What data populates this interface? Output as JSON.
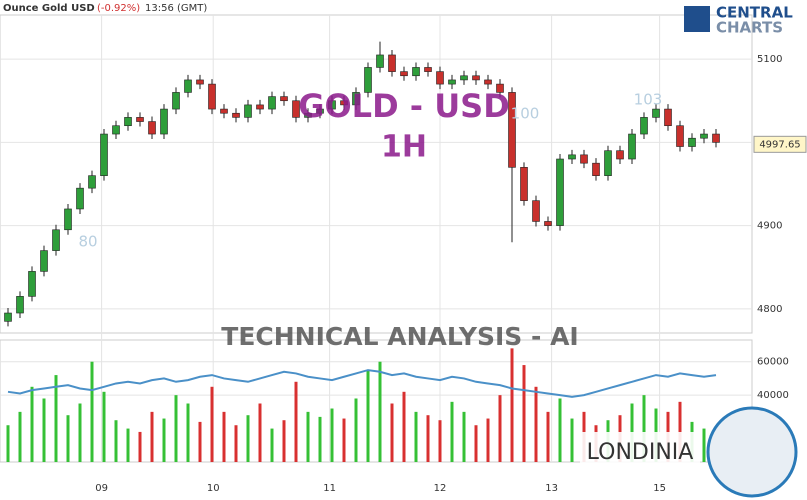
{
  "header": {
    "symbol": "Ounce Gold USD",
    "change": "(-0.92%)",
    "time": "13:56 (GMT)",
    "brand": "CENTRAL",
    "brand2": "CHARTS"
  },
  "watermarks": {
    "title": "GOLD - USD",
    "timeframe": "1H",
    "analysis": "TECHNICAL  ANALYSIS - AI",
    "provider": "LONDINIA",
    "faint": [
      "80",
      "100",
      "103"
    ]
  },
  "chart_data": [
    {
      "type": "candlestick",
      "last_price": 4997.65,
      "up_color": "#2e9e3a",
      "down_color": "#c8302c",
      "open": [
        4785,
        4795,
        4815,
        4845,
        4870,
        4895,
        4920,
        4945,
        4960,
        5010,
        5020,
        5030,
        5025,
        5010,
        5040,
        5060,
        5075,
        5070,
        5040,
        5035,
        5030,
        5045,
        5040,
        5055,
        5050,
        5030,
        5035,
        5040,
        5050,
        5045,
        5060,
        5090,
        5105,
        5085,
        5080,
        5090,
        5085,
        5070,
        5075,
        5080,
        5075,
        5070,
        5060,
        4970,
        4930,
        4905,
        4900,
        4980,
        4985,
        4975,
        4960,
        4990,
        4980,
        5010,
        5030,
        5040,
        5020,
        4995,
        5005,
        5010
      ],
      "high": [
        4801,
        4821,
        4851,
        4876,
        4901,
        4926,
        4951,
        4966,
        5016,
        5026,
        5036,
        5036,
        5031,
        5046,
        5066,
        5081,
        5081,
        5076,
        5046,
        5041,
        5051,
        5051,
        5061,
        5061,
        5056,
        5041,
        5046,
        5056,
        5056,
        5066,
        5096,
        5121,
        5111,
        5091,
        5096,
        5096,
        5091,
        5081,
        5086,
        5086,
        5081,
        5076,
        5066,
        4976,
        4936,
        4911,
        4986,
        4991,
        4991,
        4981,
        4996,
        4996,
        5016,
        5036,
        5046,
        5046,
        5026,
        5011,
        5016,
        5016
      ],
      "low": [
        4779,
        4789,
        4809,
        4839,
        4864,
        4889,
        4914,
        4939,
        4954,
        5004,
        5014,
        5019,
        5004,
        5004,
        5034,
        5054,
        5064,
        5034,
        5029,
        5024,
        5024,
        5034,
        5034,
        5044,
        5024,
        5024,
        5029,
        5034,
        5039,
        5039,
        5054,
        5084,
        5079,
        5074,
        5074,
        5079,
        5064,
        5064,
        5069,
        5069,
        5064,
        5054,
        4880,
        4924,
        4899,
        4894,
        4894,
        4974,
        4969,
        4954,
        4954,
        4974,
        4974,
        5004,
        5024,
        5014,
        4989,
        4989,
        4999,
        4994
      ],
      "close": [
        4795,
        4815,
        4845,
        4870,
        4895,
        4920,
        4945,
        4960,
        5010,
        5020,
        5030,
        5025,
        5010,
        5040,
        5060,
        5075,
        5070,
        5040,
        5035,
        5030,
        5045,
        5040,
        5055,
        5050,
        5030,
        5035,
        5040,
        5050,
        5045,
        5060,
        5090,
        5105,
        5085,
        5080,
        5090,
        5085,
        5070,
        5075,
        5080,
        5075,
        5070,
        5060,
        4970,
        4930,
        4905,
        4900,
        4980,
        4985,
        4975,
        4960,
        4990,
        4980,
        5010,
        5030,
        5040,
        5020,
        4995,
        5005,
        5010,
        5000
      ],
      "xlim": [
        -0.5,
        60
      ],
      "xticks": [
        {
          "value": 7.8,
          "label": "09"
        },
        {
          "value": 17.1,
          "label": "10"
        },
        {
          "value": 26.8,
          "label": "11"
        },
        {
          "value": 36,
          "label": "12"
        },
        {
          "value": 45.3,
          "label": "13"
        },
        {
          "value": 54.3,
          "label": "15"
        }
      ],
      "ylim": [
        4771,
        5153
      ],
      "yticks": [
        4800,
        4900,
        5000,
        5100
      ],
      "grid": true
    },
    {
      "type": "volume",
      "ylim": [
        0,
        73000
      ],
      "yticks": [
        40000,
        60000
      ],
      "up_color": "#35c035",
      "down_color": "#d83030",
      "values": [
        22000,
        30000,
        45000,
        38000,
        52000,
        28000,
        35000,
        60000,
        42000,
        25000,
        20000,
        18000,
        30000,
        26000,
        40000,
        35000,
        24000,
        45000,
        30000,
        22000,
        28000,
        35000,
        20000,
        25000,
        48000,
        30000,
        27000,
        32000,
        26000,
        38000,
        55000,
        60000,
        35000,
        42000,
        30000,
        28000,
        25000,
        36000,
        30000,
        22000,
        26000,
        40000,
        68000,
        58000,
        45000,
        30000,
        38000,
        26000,
        30000,
        22000,
        25000,
        28000,
        35000,
        40000,
        32000,
        30000,
        36000,
        24000,
        20000,
        15000
      ],
      "series": [
        {
          "color": "#4a90c8",
          "values": [
            42000,
            41000,
            43000,
            44000,
            45000,
            46000,
            44000,
            43000,
            45000,
            47000,
            48000,
            47000,
            49000,
            50000,
            48000,
            49000,
            51000,
            52000,
            50000,
            49000,
            48000,
            50000,
            52000,
            54000,
            53000,
            51000,
            50000,
            49000,
            51000,
            53000,
            55000,
            54000,
            52000,
            53000,
            51000,
            50000,
            49000,
            51000,
            50000,
            48000,
            47000,
            46000,
            44000,
            43000,
            42000,
            41000,
            40000,
            39000,
            40000,
            42000,
            44000,
            46000,
            48000,
            50000,
            52000,
            51000,
            53000,
            52000,
            51000,
            52000
          ]
        }
      ]
    }
  ]
}
